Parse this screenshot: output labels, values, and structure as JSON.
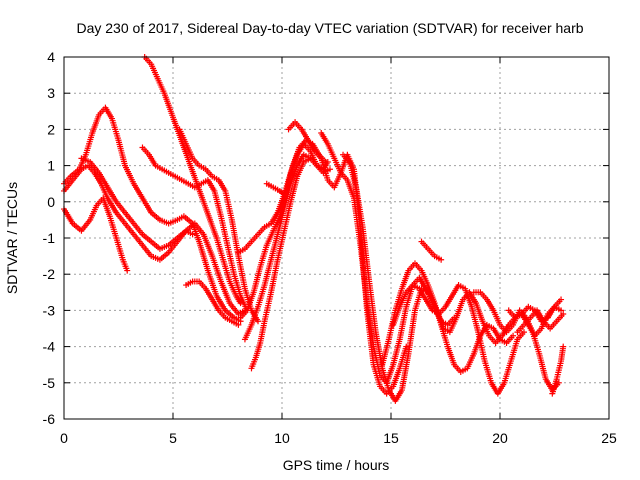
{
  "chart_data": {
    "type": "scatter",
    "title": "Day 230 of 2017, Sidereal Day-to-day VTEC variation (SDTVAR) for receiver harb",
    "xlabel": "GPS time / hours",
    "ylabel": "SDTVAR / TECUs",
    "xlim": [
      0,
      25
    ],
    "ylim": [
      -6,
      4
    ],
    "xticks": [
      "0",
      "5",
      "10",
      "15",
      "20",
      "25"
    ],
    "yticks": [
      "-6",
      "-5",
      "-4",
      "-3",
      "-2",
      "-1",
      "0",
      "1",
      "2",
      "3",
      "4"
    ],
    "grid": true,
    "marker": "+",
    "color": "#ff0000",
    "series": [
      {
        "x": [
          0.0,
          0.4,
          0.8,
          1.2,
          1.5,
          1.8,
          2.1,
          2.4,
          2.7,
          2.9
        ],
        "y": [
          -0.2,
          -0.6,
          -0.8,
          -0.5,
          -0.1,
          0.1,
          -0.4,
          -1.0,
          -1.6,
          -1.9
        ]
      },
      {
        "x": [
          0.0,
          0.3,
          0.7,
          1.0,
          1.3,
          1.6,
          1.9,
          2.2,
          2.5,
          2.8,
          3.2,
          3.6,
          4.0,
          4.4,
          4.8,
          5.2,
          5.5,
          5.9,
          6.2,
          6.6,
          7.0,
          7.4,
          7.8,
          8.1
        ],
        "y": [
          0.5,
          0.7,
          0.9,
          1.3,
          1.9,
          2.4,
          2.6,
          2.3,
          1.7,
          1.0,
          0.5,
          0.1,
          -0.3,
          -0.5,
          -0.6,
          -0.5,
          -0.4,
          -0.6,
          -1.1,
          -1.9,
          -2.6,
          -3.0,
          -3.2,
          -3.3
        ]
      },
      {
        "x": [
          0.0,
          0.4,
          0.8,
          1.1,
          1.4,
          1.7,
          2.0,
          2.4,
          2.8,
          3.2,
          3.6,
          4.0,
          4.4,
          4.8,
          5.2,
          5.6,
          5.9
        ],
        "y": [
          0.3,
          0.6,
          0.9,
          1.0,
          0.8,
          0.5,
          0.1,
          -0.3,
          -0.6,
          -0.9,
          -1.2,
          -1.5,
          -1.6,
          -1.4,
          -1.1,
          -0.8,
          -0.9
        ]
      },
      {
        "x": [
          0.8,
          1.2,
          1.6,
          2.0,
          2.4,
          2.8,
          3.2,
          3.6,
          4.0,
          4.4,
          4.8,
          5.2,
          5.6,
          6.0,
          6.4,
          6.8,
          7.2,
          7.6,
          8.0,
          8.3
        ],
        "y": [
          1.2,
          1.1,
          0.8,
          0.4,
          0.0,
          -0.3,
          -0.6,
          -0.9,
          -1.1,
          -1.3,
          -1.2,
          -1.0,
          -0.8,
          -0.6,
          -0.9,
          -1.5,
          -2.2,
          -2.8,
          -3.1,
          -3.0
        ]
      },
      {
        "x": [
          3.7,
          4.0,
          4.3,
          4.6,
          4.9,
          5.2,
          5.5,
          5.8,
          6.1,
          6.4,
          6.7,
          7.0,
          7.3,
          7.6,
          7.9,
          8.1
        ],
        "y": [
          4.0,
          3.8,
          3.4,
          3.0,
          2.5,
          2.0,
          1.5,
          1.0,
          0.5,
          0.0,
          -0.5,
          -1.0,
          -1.6,
          -2.2,
          -2.6,
          -2.8
        ]
      },
      {
        "x": [
          3.6,
          3.9,
          4.2,
          4.5,
          4.8,
          5.1,
          5.4,
          5.7,
          6.0,
          6.3,
          6.6,
          6.9,
          7.2,
          7.5,
          7.8,
          8.1,
          8.4
        ],
        "y": [
          1.5,
          1.3,
          1.0,
          0.9,
          0.8,
          0.7,
          0.6,
          0.5,
          0.4,
          0.5,
          0.6,
          0.3,
          -0.4,
          -1.2,
          -2.0,
          -2.6,
          -3.0
        ]
      },
      {
        "x": [
          5.3,
          5.6,
          5.9,
          6.2,
          6.5,
          6.8,
          7.1,
          7.4,
          7.7,
          8.0,
          8.3,
          8.6,
          8.9
        ],
        "y": [
          2.0,
          1.6,
          1.2,
          1.0,
          0.9,
          0.7,
          0.6,
          0.3,
          -0.5,
          -1.5,
          -2.4,
          -3.0,
          -3.3
        ]
      },
      {
        "x": [
          5.6,
          5.9,
          6.2,
          6.5,
          6.8,
          7.1,
          7.4,
          7.7,
          8.0
        ],
        "y": [
          -2.3,
          -2.2,
          -2.2,
          -2.4,
          -2.7,
          -3.0,
          -3.2,
          -3.3,
          -3.4
        ]
      },
      {
        "x": [
          8.0,
          8.3,
          8.6,
          8.9,
          9.2,
          9.5,
          9.8,
          10.1,
          10.4,
          10.7,
          11.0,
          11.3,
          11.6,
          11.9,
          12.2
        ],
        "y": [
          -1.4,
          -1.3,
          -1.1,
          -0.9,
          -0.7,
          -0.6,
          -0.3,
          0.2,
          0.8,
          1.3,
          1.6,
          1.4,
          1.0,
          0.8,
          0.9
        ]
      },
      {
        "x": [
          8.1,
          8.4,
          8.7,
          9.0,
          9.3,
          9.6,
          9.9,
          10.2,
          10.5,
          10.8,
          11.1,
          11.4,
          11.7,
          12.0
        ],
        "y": [
          -3.2,
          -3.0,
          -2.5,
          -1.8,
          -1.2,
          -0.8,
          -0.4,
          0.3,
          1.0,
          1.5,
          1.7,
          1.6,
          1.3,
          1.1
        ]
      },
      {
        "x": [
          8.3,
          8.6,
          8.9,
          9.2,
          9.5,
          9.8,
          10.1,
          10.4,
          10.7,
          11.0,
          11.3,
          11.6,
          11.9,
          12.1
        ],
        "y": [
          -3.8,
          -3.4,
          -2.9,
          -2.3,
          -1.6,
          -0.9,
          -0.2,
          0.5,
          1.0,
          1.3,
          1.2,
          1.0,
          0.9,
          1.1
        ]
      },
      {
        "x": [
          8.6,
          8.8,
          9.0,
          9.2,
          9.5,
          9.8,
          10.1,
          10.4,
          10.7,
          11.0,
          11.3
        ],
        "y": [
          -4.6,
          -4.3,
          -3.9,
          -3.3,
          -2.5,
          -1.6,
          -0.8,
          0.0,
          0.7,
          1.1,
          1.2
        ]
      },
      {
        "x": [
          9.3,
          9.6,
          9.9,
          10.1
        ],
        "y": [
          0.5,
          0.4,
          0.3,
          0.2
        ]
      },
      {
        "x": [
          10.3,
          10.6,
          10.9,
          11.2,
          11.5,
          11.8,
          12.1,
          12.4,
          12.7,
          13.0,
          13.3,
          13.6,
          13.9,
          14.2,
          14.5,
          14.8,
          15.1,
          15.4,
          15.7
        ],
        "y": [
          2.0,
          2.2,
          2.0,
          1.7,
          1.4,
          1.2,
          0.6,
          0.4,
          0.8,
          1.3,
          0.9,
          -0.8,
          -3.0,
          -4.5,
          -5.1,
          -5.3,
          -5.1,
          -4.6,
          -4.0
        ]
      },
      {
        "x": [
          11.8,
          12.1,
          12.4,
          12.7,
          13.0,
          13.3,
          13.6,
          13.9,
          14.2,
          14.5,
          14.8,
          15.1,
          15.4,
          15.7,
          16.0,
          16.3,
          16.6
        ],
        "y": [
          1.9,
          1.6,
          1.2,
          0.8,
          0.6,
          0.1,
          -1.2,
          -2.8,
          -4.0,
          -4.8,
          -5.0,
          -4.5,
          -3.8,
          -2.9,
          -2.3,
          -2.1,
          -2.4
        ]
      },
      {
        "x": [
          12.8,
          13.1,
          13.4,
          13.7,
          14.0,
          14.3,
          14.6,
          14.9,
          15.2,
          15.5,
          15.8,
          16.1,
          16.4,
          16.7,
          17.0,
          17.3,
          17.6,
          17.9
        ],
        "y": [
          1.3,
          1.1,
          0.4,
          -0.7,
          -2.2,
          -3.6,
          -4.6,
          -5.2,
          -5.5,
          -5.2,
          -4.2,
          -3.0,
          -2.4,
          -2.5,
          -2.9,
          -3.3,
          -3.4,
          -3.2
        ]
      },
      {
        "x": [
          14.6,
          14.9,
          15.2,
          15.5,
          15.8,
          16.1,
          16.4,
          16.7,
          17.0,
          17.3,
          17.6,
          17.9,
          18.2,
          18.5,
          18.8,
          19.1,
          19.4,
          19.7,
          20.0,
          20.3,
          20.6
        ],
        "y": [
          -4.5,
          -3.8,
          -3.0,
          -2.4,
          -1.9,
          -1.7,
          -1.9,
          -2.3,
          -2.8,
          -3.4,
          -4.0,
          -4.5,
          -4.7,
          -4.6,
          -4.2,
          -3.7,
          -3.4,
          -3.5,
          -3.8,
          -3.9,
          -3.7
        ]
      },
      {
        "x": [
          15.1,
          15.4,
          15.7,
          16.0,
          16.3,
          16.6,
          16.9,
          17.2,
          17.5,
          17.8,
          18.1,
          18.4,
          18.7,
          19.0,
          19.3,
          19.6,
          19.9,
          20.2,
          20.5,
          20.8,
          21.1
        ],
        "y": [
          -3.4,
          -2.9,
          -2.5,
          -2.3,
          -2.4,
          -2.7,
          -3.0,
          -3.1,
          -2.9,
          -2.6,
          -2.3,
          -2.4,
          -2.9,
          -3.6,
          -4.4,
          -5.0,
          -5.3,
          -5.0,
          -4.4,
          -3.8,
          -3.6
        ]
      },
      {
        "x": [
          16.5,
          16.8,
          17.1,
          17.4,
          17.7,
          18.0,
          18.3,
          18.6,
          18.9,
          19.2,
          19.5,
          19.8,
          20.1,
          20.4,
          20.7,
          21.0,
          21.3,
          21.6,
          21.9,
          22.2,
          22.5,
          22.8
        ],
        "y": [
          -2.3,
          -2.6,
          -3.0,
          -3.5,
          -3.6,
          -3.2,
          -2.7,
          -2.5,
          -2.8,
          -3.3,
          -3.7,
          -3.9,
          -3.7,
          -3.4,
          -3.2,
          -3.1,
          -3.4,
          -3.7,
          -3.5,
          -3.1,
          -2.9,
          -3.0
        ]
      },
      {
        "x": [
          16.4,
          16.7,
          17.0,
          17.3
        ],
        "y": [
          -1.1,
          -1.3,
          -1.5,
          -1.6
        ]
      },
      {
        "x": [
          18.8,
          19.1,
          19.4,
          19.7,
          20.0,
          20.3,
          20.6,
          20.9,
          21.2,
          21.5,
          21.8,
          22.1,
          22.4,
          22.7
        ],
        "y": [
          -2.5,
          -2.5,
          -2.7,
          -3.0,
          -3.4,
          -3.6,
          -3.4,
          -3.0,
          -3.2,
          -3.6,
          -4.2,
          -4.9,
          -5.2,
          -5.0
        ]
      },
      {
        "x": [
          20.4,
          20.7,
          21.0,
          21.3,
          21.6,
          21.9,
          22.2,
          22.5,
          22.8
        ],
        "y": [
          -3.0,
          -3.2,
          -3.1,
          -2.9,
          -3.0,
          -3.3,
          -3.2,
          -2.9,
          -2.7
        ]
      },
      {
        "x": [
          20.8,
          21.1,
          21.4,
          21.7,
          22.0,
          22.3,
          22.6,
          22.9
        ],
        "y": [
          -3.6,
          -3.4,
          -3.2,
          -3.0,
          -3.3,
          -3.5,
          -3.3,
          -3.1
        ]
      },
      {
        "x": [
          22.4,
          22.6,
          22.8,
          22.9
        ],
        "y": [
          -5.3,
          -4.9,
          -4.4,
          -4.0
        ]
      }
    ]
  }
}
